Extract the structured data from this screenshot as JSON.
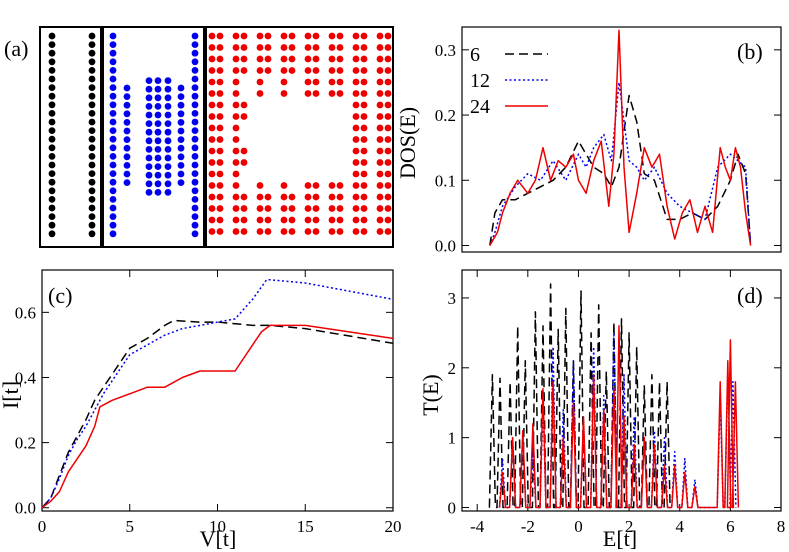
{
  "figure": {
    "panel_labels": [
      "(a)",
      "(b)",
      "(c)",
      "(d)"
    ],
    "colors": {
      "series_6": "#000000",
      "series_12": "#0000ee",
      "series_24": "#ee0000"
    }
  },
  "chart_data": [
    {
      "panel": "(a)",
      "type": "diagram",
      "structures": [
        {
          "color": "#000000",
          "description": "two straight chains"
        },
        {
          "color": "#0000ee",
          "description": "chains with staggered inner columns"
        },
        {
          "color": "#ee0000",
          "description": "paired columns with central vacancy"
        }
      ]
    },
    {
      "panel": "(b)",
      "type": "line",
      "title": "",
      "xlabel": "",
      "ylabel": "DOS(E)",
      "xlim": [
        -4.6,
        8
      ],
      "ylim": [
        -0.01,
        0.335
      ],
      "yticks": [
        0.0,
        0.1,
        0.2,
        0.3
      ],
      "ytick_labels": [
        "0.0",
        "0.1",
        "0.2",
        "0.3"
      ],
      "legend": {
        "placement": "top-left",
        "entries": [
          "6",
          "12",
          "24"
        ]
      },
      "series": [
        {
          "name": "6",
          "style": "dashed",
          "color": "#000000",
          "x": [
            -3.5,
            -3.3,
            -3.0,
            -2.5,
            -2.0,
            -1.5,
            -1.0,
            -0.5,
            0.0,
            0.3,
            0.6,
            1.0,
            1.3,
            1.6,
            2.0,
            2.3,
            2.6,
            3.0,
            3.5,
            4.0,
            4.5,
            5.0,
            5.5,
            6.0,
            6.3,
            6.6,
            6.8
          ],
          "y": [
            0.0,
            0.05,
            0.07,
            0.07,
            0.08,
            0.09,
            0.1,
            0.12,
            0.16,
            0.14,
            0.12,
            0.11,
            0.09,
            0.12,
            0.23,
            0.19,
            0.11,
            0.1,
            0.04,
            0.04,
            0.05,
            0.04,
            0.06,
            0.1,
            0.14,
            0.11,
            0.0
          ]
        },
        {
          "name": "12",
          "style": "dotted",
          "color": "#0000ee",
          "x": [
            -3.5,
            -3.3,
            -3.0,
            -2.5,
            -2.0,
            -1.5,
            -1.0,
            -0.5,
            0.0,
            0.3,
            0.6,
            1.0,
            1.3,
            1.6,
            2.0,
            2.3,
            2.6,
            3.0,
            3.5,
            4.0,
            4.5,
            5.0,
            5.5,
            6.0,
            6.3,
            6.6,
            6.8
          ],
          "y": [
            0.0,
            0.02,
            0.06,
            0.09,
            0.11,
            0.1,
            0.13,
            0.1,
            0.14,
            0.12,
            0.15,
            0.17,
            0.13,
            0.25,
            0.13,
            0.12,
            0.1,
            0.12,
            0.08,
            0.06,
            0.05,
            0.04,
            0.12,
            0.14,
            0.13,
            0.12,
            0.0
          ]
        },
        {
          "name": "24",
          "style": "solid",
          "color": "#ee0000",
          "x": [
            -3.5,
            -3.2,
            -3.0,
            -2.7,
            -2.4,
            -2.0,
            -1.7,
            -1.4,
            -1.1,
            -0.8,
            -0.5,
            -0.2,
            0.0,
            0.3,
            0.6,
            0.9,
            1.2,
            1.4,
            1.6,
            1.8,
            2.0,
            2.3,
            2.6,
            2.9,
            3.2,
            3.5,
            3.8,
            4.1,
            4.4,
            4.7,
            5.0,
            5.3,
            5.6,
            5.8,
            6.0,
            6.2,
            6.4,
            6.6,
            6.8
          ],
          "y": [
            0.0,
            0.02,
            0.05,
            0.08,
            0.1,
            0.08,
            0.1,
            0.15,
            0.1,
            0.13,
            0.12,
            0.14,
            0.1,
            0.08,
            0.13,
            0.16,
            0.06,
            0.14,
            0.33,
            0.12,
            0.02,
            0.08,
            0.15,
            0.12,
            0.14,
            0.06,
            0.01,
            0.05,
            0.07,
            0.02,
            0.06,
            0.02,
            0.15,
            0.12,
            0.1,
            0.15,
            0.12,
            0.05,
            0.0
          ]
        }
      ]
    },
    {
      "panel": "(c)",
      "type": "line",
      "title": "",
      "xlabel": "V[t]",
      "ylabel": "I[t]",
      "xlim": [
        0,
        20
      ],
      "ylim": [
        -0.01,
        0.73
      ],
      "xticks": [
        0,
        5,
        10,
        15,
        20
      ],
      "yticks": [
        0.0,
        0.2,
        0.4,
        0.6
      ],
      "ytick_labels": [
        "0.0",
        "0.2",
        "0.4",
        "0.6"
      ],
      "series": [
        {
          "name": "6",
          "style": "dashed",
          "color": "#000000",
          "x": [
            0,
            0.5,
            1,
            1.5,
            2,
            2.5,
            3,
            3.5,
            4,
            5,
            6,
            7,
            7.5,
            9,
            10,
            11,
            12,
            13,
            15,
            20
          ],
          "y": [
            0.0,
            0.03,
            0.1,
            0.17,
            0.22,
            0.27,
            0.33,
            0.37,
            0.41,
            0.49,
            0.52,
            0.56,
            0.575,
            0.57,
            0.57,
            0.565,
            0.56,
            0.56,
            0.55,
            0.505
          ]
        },
        {
          "name": "12",
          "style": "dotted",
          "color": "#0000ee",
          "x": [
            0,
            0.5,
            1,
            1.5,
            2,
            2.5,
            3,
            3.5,
            4,
            5,
            6,
            7,
            8,
            9,
            10,
            11,
            12,
            12.8,
            13,
            15,
            20
          ],
          "y": [
            0.0,
            0.03,
            0.09,
            0.16,
            0.21,
            0.25,
            0.3,
            0.35,
            0.39,
            0.47,
            0.5,
            0.53,
            0.55,
            0.56,
            0.57,
            0.58,
            0.64,
            0.7,
            0.7,
            0.69,
            0.64
          ]
        },
        {
          "name": "24",
          "style": "solid",
          "color": "#ee0000",
          "x": [
            0,
            0.5,
            1,
            1.5,
            2,
            2.5,
            3,
            3.3,
            4,
            5,
            6,
            7,
            8,
            9,
            10,
            11,
            12,
            12.5,
            13,
            14,
            15,
            20
          ],
          "y": [
            0.0,
            0.02,
            0.05,
            0.11,
            0.15,
            0.19,
            0.25,
            0.31,
            0.33,
            0.35,
            0.37,
            0.37,
            0.4,
            0.42,
            0.42,
            0.42,
            0.5,
            0.54,
            0.56,
            0.56,
            0.56,
            0.52
          ]
        }
      ]
    },
    {
      "panel": "(d)",
      "type": "line",
      "title": "",
      "xlabel": "E[t]",
      "ylabel": "T(E)",
      "xlim": [
        -4.6,
        8
      ],
      "ylim": [
        -0.05,
        3.4
      ],
      "xticks": [
        -4,
        -2,
        0,
        2,
        4,
        6,
        8
      ],
      "yticks": [
        0,
        1,
        2,
        3
      ],
      "series": [
        {
          "name": "6",
          "style": "dashed",
          "color": "#000000",
          "x": [
            -3.4,
            -3.1,
            -2.7,
            -2.4,
            -2.1,
            -1.7,
            -1.4,
            -1.1,
            -0.8,
            -0.5,
            -0.2,
            0.1,
            0.5,
            0.8,
            1.1,
            1.4,
            1.7,
            2.0,
            2.3,
            2.6,
            2.9,
            3.2,
            3.5
          ],
          "y": [
            1.9,
            1.85,
            1.8,
            2.6,
            2.1,
            2.8,
            2.6,
            3.2,
            2.55,
            2.85,
            2.1,
            3.1,
            2.5,
            2.9,
            1.95,
            2.65,
            2.7,
            2.5,
            2.3,
            1.75,
            1.9,
            1.8,
            1.8
          ]
        },
        {
          "name": "12",
          "style": "dotted",
          "color": "#0000ee",
          "x": [
            -3.0,
            -2.6,
            -2.2,
            -1.8,
            -1.4,
            -1.0,
            -0.6,
            -0.2,
            0.2,
            0.6,
            1.0,
            1.4,
            1.8,
            2.2,
            2.6,
            3.0,
            3.4,
            3.8,
            4.2,
            4.6,
            5.6,
            5.9,
            6.1
          ],
          "y": [
            0.7,
            1.0,
            1.0,
            0.8,
            1.5,
            2.3,
            1.4,
            2.1,
            1.2,
            2.3,
            1.6,
            2.5,
            1.9,
            1.3,
            1.0,
            1.1,
            1.0,
            0.8,
            0.7,
            0.4,
            1.6,
            1.9,
            1.8
          ]
        },
        {
          "name": "24",
          "style": "solid",
          "color": "#ee0000",
          "x": [
            -3.0,
            -2.6,
            -2.2,
            -1.8,
            -1.4,
            -1.0,
            -0.6,
            -0.2,
            0.2,
            0.6,
            1.0,
            1.4,
            1.6,
            1.8,
            2.2,
            2.6,
            3.0,
            3.4,
            3.8,
            4.2,
            4.6,
            5.6,
            5.9,
            6.0,
            6.2
          ],
          "y": [
            0.5,
            1.0,
            1.1,
            1.2,
            1.7,
            1.8,
            1.0,
            1.5,
            1.3,
            1.9,
            1.4,
            1.7,
            2.6,
            1.3,
            0.9,
            1.0,
            0.9,
            0.6,
            0.6,
            0.5,
            0.3,
            1.8,
            2.1,
            2.4,
            1.8
          ]
        }
      ]
    }
  ]
}
